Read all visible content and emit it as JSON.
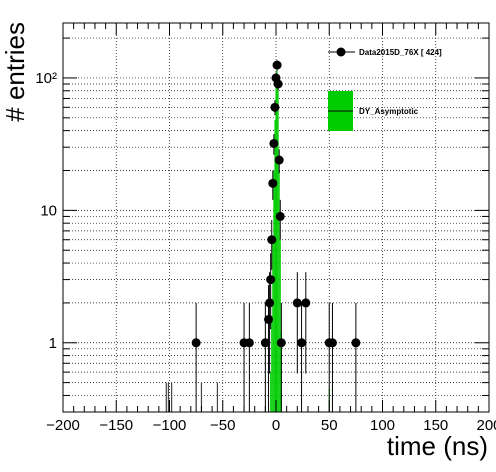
{
  "chart_data": {
    "type": "scatter",
    "title": "",
    "xlabel": "time (ns)",
    "ylabel": "# entries",
    "xlim": [
      -200,
      200
    ],
    "ylim": [
      0.3,
      260
    ],
    "yscale": "log",
    "grid": true,
    "legend_placement": "top-right",
    "x_ticks": [
      -200,
      -150,
      -100,
      -50,
      0,
      50,
      100,
      150,
      200
    ],
    "x_tick_labels": [
      "−200",
      "−150",
      "−100",
      "−50",
      "0",
      "50",
      "100",
      "150",
      "200"
    ],
    "y_ticks": [
      1,
      10,
      100
    ],
    "y_tick_labels": [
      "1",
      "10",
      "10²"
    ],
    "series": [
      {
        "name": "Data2015D_76X [     424]",
        "kind": "points",
        "color": "#000000",
        "points": [
          {
            "x": -75,
            "y": 1
          },
          {
            "x": -30,
            "y": 1
          },
          {
            "x": -25,
            "y": 1
          },
          {
            "x": -10,
            "y": 1
          },
          {
            "x": -7,
            "y": 1.5
          },
          {
            "x": -6,
            "y": 2
          },
          {
            "x": -5,
            "y": 3
          },
          {
            "x": -4,
            "y": 6
          },
          {
            "x": -3,
            "y": 16
          },
          {
            "x": -2,
            "y": 32
          },
          {
            "x": -1,
            "y": 60
          },
          {
            "x": 0,
            "y": 100
          },
          {
            "x": 1,
            "y": 125
          },
          {
            "x": 2,
            "y": 90
          },
          {
            "x": 3,
            "y": 24
          },
          {
            "x": 4,
            "y": 9
          },
          {
            "x": 5,
            "y": 1
          },
          {
            "x": 20,
            "y": 2
          },
          {
            "x": 24,
            "y": 1
          },
          {
            "x": 28,
            "y": 2
          },
          {
            "x": 50,
            "y": 1
          },
          {
            "x": 53,
            "y": 1
          },
          {
            "x": 75,
            "y": 1
          }
        ]
      },
      {
        "name": "DY_Asymptotic",
        "kind": "band",
        "color": "#00cc00",
        "x_centers": [
          -5,
          -4,
          -3,
          -2,
          -1,
          0,
          1,
          2,
          3,
          4,
          5,
          50
        ],
        "values": [
          0.6,
          1.6,
          6,
          20,
          48,
          85,
          115,
          80,
          20,
          6,
          1.2,
          0.45
        ]
      }
    ],
    "gray_spikes": [
      {
        "x": -103,
        "y": 0.5
      },
      {
        "x": -101,
        "y": 0.5
      },
      {
        "x": -98,
        "y": 0.5
      },
      {
        "x": -70,
        "y": 0.5
      },
      {
        "x": -55,
        "y": 0.5
      }
    ]
  }
}
